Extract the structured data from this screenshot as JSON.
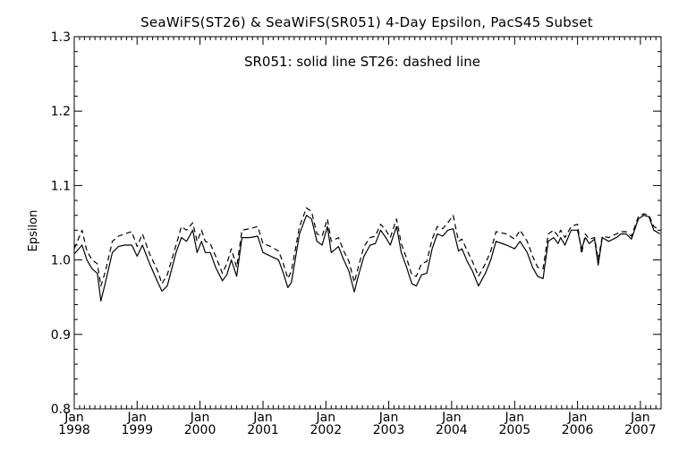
{
  "chart_data": {
    "type": "line",
    "title": "SeaWiFS(ST26) & SeaWiFS(SR051) 4-Day Epsilon, PacS45 Subset",
    "annotation": "SR051: solid line    ST26: dashed line",
    "xlabel": "",
    "ylabel": "Epsilon",
    "xlim": [
      "1998-01-01",
      "2007-05-01"
    ],
    "ylim": [
      0.8,
      1.3
    ],
    "y_ticks": [
      "0.8",
      "0.9",
      "1.0",
      "1.1",
      "1.2",
      "1.3"
    ],
    "x_ticks": [
      {
        "x": "1998-01-01",
        "month": "Jan",
        "year": "1998"
      },
      {
        "x": "1999-01-01",
        "month": "Jan",
        "year": "1999"
      },
      {
        "x": "2000-01-01",
        "month": "Jan",
        "year": "2000"
      },
      {
        "x": "2001-01-01",
        "month": "Jan",
        "year": "2001"
      },
      {
        "x": "2002-01-01",
        "month": "Jan",
        "year": "2002"
      },
      {
        "x": "2003-01-01",
        "month": "Jan",
        "year": "2003"
      },
      {
        "x": "2004-01-01",
        "month": "Jan",
        "year": "2004"
      },
      {
        "x": "2005-01-01",
        "month": "Jan",
        "year": "2005"
      },
      {
        "x": "2006-01-01",
        "month": "Jan",
        "year": "2006"
      },
      {
        "x": "2007-01-01",
        "month": "Jan",
        "year": "2007"
      }
    ],
    "grid": false,
    "series": [
      {
        "name": "SR051",
        "style": "solid",
        "color": "#000000",
        "points": [
          [
            "1998-01-01",
            1.008
          ],
          [
            "1998-02-15",
            1.02
          ],
          [
            "1998-03-15",
            1.0
          ],
          [
            "1998-04-15",
            0.988
          ],
          [
            "1998-05-15",
            0.982
          ],
          [
            "1998-06-05",
            0.945
          ],
          [
            "1998-07-01",
            0.97
          ],
          [
            "1998-08-10",
            1.01
          ],
          [
            "1998-09-15",
            1.018
          ],
          [
            "1998-10-20",
            1.02
          ],
          [
            "1998-12-01",
            1.02
          ],
          [
            "1999-01-01",
            1.005
          ],
          [
            "1999-02-01",
            1.02
          ],
          [
            "1999-03-15",
            0.995
          ],
          [
            "1999-05-01",
            0.97
          ],
          [
            "1999-05-25",
            0.958
          ],
          [
            "1999-06-25",
            0.965
          ],
          [
            "1999-08-15",
            1.01
          ],
          [
            "1999-09-15",
            1.03
          ],
          [
            "1999-10-15",
            1.025
          ],
          [
            "1999-11-20",
            1.04
          ],
          [
            "1999-12-15",
            1.01
          ],
          [
            "2000-01-10",
            1.025
          ],
          [
            "2000-02-01",
            1.01
          ],
          [
            "2000-03-01",
            1.01
          ],
          [
            "2000-04-01",
            0.99
          ],
          [
            "2000-05-10",
            0.972
          ],
          [
            "2000-06-05",
            0.98
          ],
          [
            "2000-07-01",
            1.0
          ],
          [
            "2000-08-01",
            0.978
          ],
          [
            "2000-09-01",
            1.03
          ],
          [
            "2000-10-15",
            1.03
          ],
          [
            "2000-12-01",
            1.032
          ],
          [
            "2001-01-01",
            1.01
          ],
          [
            "2001-02-15",
            1.005
          ],
          [
            "2001-04-01",
            1.0
          ],
          [
            "2001-04-25",
            0.985
          ],
          [
            "2001-05-25",
            0.963
          ],
          [
            "2001-06-15",
            0.97
          ],
          [
            "2001-08-01",
            1.035
          ],
          [
            "2001-09-10",
            1.06
          ],
          [
            "2001-10-10",
            1.055
          ],
          [
            "2001-11-10",
            1.025
          ],
          [
            "2001-12-10",
            1.02
          ],
          [
            "2002-01-10",
            1.045
          ],
          [
            "2002-02-01",
            1.01
          ],
          [
            "2002-03-15",
            1.018
          ],
          [
            "2002-04-15",
            1.0
          ],
          [
            "2002-05-15",
            0.985
          ],
          [
            "2002-06-15",
            0.957
          ],
          [
            "2002-07-10",
            0.98
          ],
          [
            "2002-08-10",
            1.005
          ],
          [
            "2002-09-15",
            1.02
          ],
          [
            "2002-10-15",
            1.022
          ],
          [
            "2002-11-15",
            1.04
          ],
          [
            "2002-12-15",
            1.03
          ],
          [
            "2003-01-10",
            1.02
          ],
          [
            "2003-02-15",
            1.045
          ],
          [
            "2003-03-15",
            1.01
          ],
          [
            "2003-04-15",
            0.99
          ],
          [
            "2003-05-15",
            0.968
          ],
          [
            "2003-06-10",
            0.965
          ],
          [
            "2003-07-10",
            0.98
          ],
          [
            "2003-08-10",
            0.982
          ],
          [
            "2003-09-10",
            1.015
          ],
          [
            "2003-10-10",
            1.035
          ],
          [
            "2003-11-10",
            1.032
          ],
          [
            "2003-12-10",
            1.04
          ],
          [
            "2004-01-10",
            1.042
          ],
          [
            "2004-02-10",
            1.012
          ],
          [
            "2004-03-01",
            1.015
          ],
          [
            "2004-04-01",
            0.998
          ],
          [
            "2004-05-01",
            0.985
          ],
          [
            "2004-06-05",
            0.965
          ],
          [
            "2004-07-15",
            0.982
          ],
          [
            "2004-08-15",
            1.0
          ],
          [
            "2004-09-15",
            1.025
          ],
          [
            "2004-11-15",
            1.02
          ],
          [
            "2005-01-01",
            1.015
          ],
          [
            "2005-02-01",
            1.025
          ],
          [
            "2005-03-15",
            1.01
          ],
          [
            "2005-04-15",
            0.99
          ],
          [
            "2005-05-15",
            0.978
          ],
          [
            "2005-06-15",
            0.975
          ],
          [
            "2005-07-15",
            1.025
          ],
          [
            "2005-08-15",
            1.03
          ],
          [
            "2005-09-10",
            1.022
          ],
          [
            "2005-09-25",
            1.03
          ],
          [
            "2005-10-20",
            1.02
          ],
          [
            "2005-11-25",
            1.04
          ],
          [
            "2006-01-01",
            1.04
          ],
          [
            "2006-01-25",
            1.015
          ],
          [
            "2006-02-15",
            1.03
          ],
          [
            "2006-03-10",
            1.022
          ],
          [
            "2006-04-10",
            1.028
          ],
          [
            "2006-05-01",
            0.993
          ],
          [
            "2006-05-25",
            1.03
          ],
          [
            "2006-07-01",
            1.025
          ],
          [
            "2006-08-15",
            1.03
          ],
          [
            "2006-09-10",
            1.035
          ],
          [
            "2006-10-10",
            1.035
          ],
          [
            "2006-11-10",
            1.028
          ],
          [
            "2006-12-20",
            1.055
          ],
          [
            "2007-01-20",
            1.06
          ],
          [
            "2007-02-20",
            1.058
          ],
          [
            "2007-03-20",
            1.04
          ],
          [
            "2007-04-25",
            1.035
          ]
        ]
      },
      {
        "name": "ST26",
        "style": "dashed",
        "color": "#000000",
        "points": [
          [
            "1998-01-01",
            1.015
          ],
          [
            "1998-02-15",
            1.04
          ],
          [
            "1998-03-15",
            1.012
          ],
          [
            "1998-04-15",
            1.0
          ],
          [
            "1998-05-15",
            0.995
          ],
          [
            "1998-06-05",
            0.965
          ],
          [
            "1998-07-01",
            0.985
          ],
          [
            "1998-08-10",
            1.025
          ],
          [
            "1998-09-15",
            1.032
          ],
          [
            "1998-10-20",
            1.035
          ],
          [
            "1998-12-01",
            1.038
          ],
          [
            "1999-01-01",
            1.018
          ],
          [
            "1999-02-01",
            1.035
          ],
          [
            "1999-03-15",
            1.008
          ],
          [
            "1999-05-01",
            0.985
          ],
          [
            "1999-05-25",
            0.968
          ],
          [
            "1999-06-25",
            0.98
          ],
          [
            "1999-08-15",
            1.02
          ],
          [
            "1999-09-15",
            1.045
          ],
          [
            "1999-10-15",
            1.04
          ],
          [
            "1999-11-20",
            1.05
          ],
          [
            "1999-12-15",
            1.025
          ],
          [
            "2000-01-10",
            1.04
          ],
          [
            "2000-02-01",
            1.025
          ],
          [
            "2000-03-01",
            1.022
          ],
          [
            "2000-04-01",
            1.005
          ],
          [
            "2000-05-10",
            0.982
          ],
          [
            "2000-06-05",
            0.995
          ],
          [
            "2000-07-01",
            1.015
          ],
          [
            "2000-08-01",
            0.99
          ],
          [
            "2000-09-01",
            1.04
          ],
          [
            "2000-10-15",
            1.042
          ],
          [
            "2000-12-01",
            1.045
          ],
          [
            "2001-01-01",
            1.022
          ],
          [
            "2001-02-15",
            1.018
          ],
          [
            "2001-04-01",
            1.012
          ],
          [
            "2001-04-25",
            0.998
          ],
          [
            "2001-05-25",
            0.975
          ],
          [
            "2001-06-15",
            0.985
          ],
          [
            "2001-08-01",
            1.045
          ],
          [
            "2001-09-10",
            1.07
          ],
          [
            "2001-10-10",
            1.065
          ],
          [
            "2001-11-10",
            1.035
          ],
          [
            "2001-12-10",
            1.032
          ],
          [
            "2002-01-10",
            1.055
          ],
          [
            "2002-02-01",
            1.025
          ],
          [
            "2002-03-15",
            1.03
          ],
          [
            "2002-04-15",
            1.012
          ],
          [
            "2002-05-15",
            0.998
          ],
          [
            "2002-06-15",
            0.97
          ],
          [
            "2002-07-10",
            0.992
          ],
          [
            "2002-08-10",
            1.018
          ],
          [
            "2002-09-15",
            1.03
          ],
          [
            "2002-10-15",
            1.032
          ],
          [
            "2002-11-15",
            1.048
          ],
          [
            "2002-12-15",
            1.04
          ],
          [
            "2003-01-10",
            1.03
          ],
          [
            "2003-02-15",
            1.055
          ],
          [
            "2003-03-15",
            1.022
          ],
          [
            "2003-04-15",
            1.002
          ],
          [
            "2003-05-15",
            0.98
          ],
          [
            "2003-06-10",
            0.978
          ],
          [
            "2003-07-10",
            0.995
          ],
          [
            "2003-08-10",
            0.998
          ],
          [
            "2003-09-10",
            1.028
          ],
          [
            "2003-10-10",
            1.045
          ],
          [
            "2003-11-10",
            1.042
          ],
          [
            "2003-12-10",
            1.05
          ],
          [
            "2004-01-10",
            1.06
          ],
          [
            "2004-02-10",
            1.025
          ],
          [
            "2004-03-01",
            1.028
          ],
          [
            "2004-04-01",
            1.012
          ],
          [
            "2004-05-01",
            0.998
          ],
          [
            "2004-06-05",
            0.978
          ],
          [
            "2004-07-15",
            0.995
          ],
          [
            "2004-08-15",
            1.012
          ],
          [
            "2004-09-15",
            1.038
          ],
          [
            "2004-11-15",
            1.035
          ],
          [
            "2005-01-01",
            1.028
          ],
          [
            "2005-02-01",
            1.04
          ],
          [
            "2005-03-15",
            1.025
          ],
          [
            "2005-04-15",
            1.005
          ],
          [
            "2005-05-15",
            0.99
          ],
          [
            "2005-06-15",
            0.988
          ],
          [
            "2005-07-15",
            1.035
          ],
          [
            "2005-08-15",
            1.04
          ],
          [
            "2005-09-10",
            1.032
          ],
          [
            "2005-09-25",
            1.04
          ],
          [
            "2005-10-20",
            1.03
          ],
          [
            "2005-11-25",
            1.045
          ],
          [
            "2006-01-01",
            1.048
          ],
          [
            "2006-01-25",
            1.008
          ],
          [
            "2006-02-15",
            1.035
          ],
          [
            "2006-03-10",
            1.028
          ],
          [
            "2006-04-10",
            1.03
          ],
          [
            "2006-05-01",
            1.0
          ],
          [
            "2006-05-25",
            1.032
          ],
          [
            "2006-07-01",
            1.03
          ],
          [
            "2006-08-15",
            1.035
          ],
          [
            "2006-09-10",
            1.038
          ],
          [
            "2006-10-10",
            1.038
          ],
          [
            "2006-11-10",
            1.032
          ],
          [
            "2006-12-20",
            1.058
          ],
          [
            "2007-01-20",
            1.062
          ],
          [
            "2007-02-20",
            1.06
          ],
          [
            "2007-03-20",
            1.045
          ],
          [
            "2007-04-25",
            1.04
          ]
        ]
      }
    ]
  }
}
